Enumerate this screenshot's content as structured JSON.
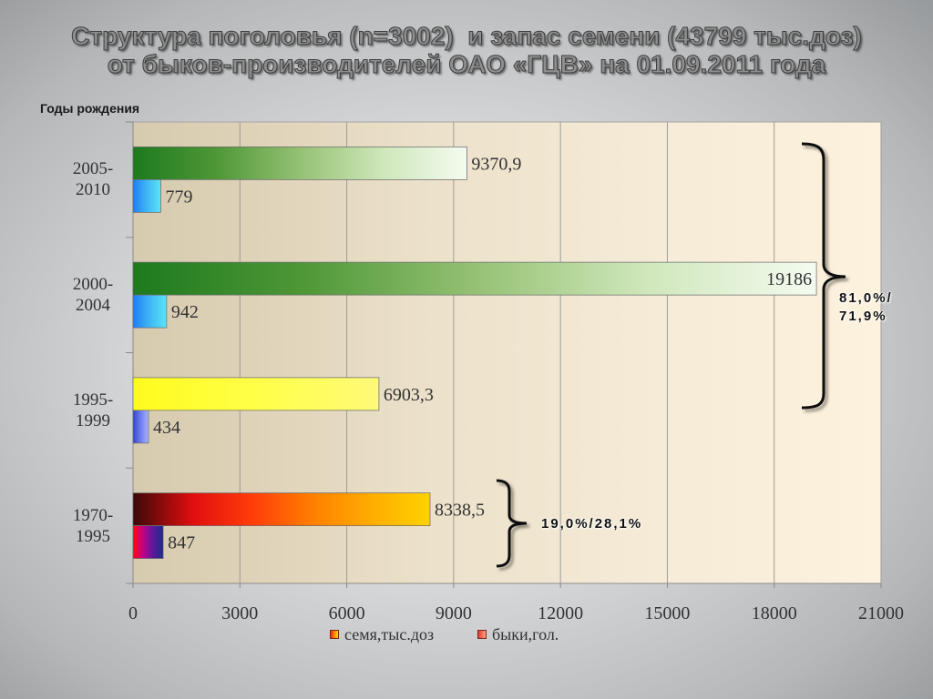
{
  "chart_data": {
    "type": "bar",
    "orientation": "horizontal",
    "title": "Структура поголовья (n=3002)  и запас семени (43799 тыс.доз)\nот быков-производителей ОАО «ГЦВ» на 01.09.2011 года",
    "ylabel": "Годы рождения",
    "categories": [
      "2005-2010",
      "2000-2004",
      "1995-1999",
      "1970-1995"
    ],
    "series": [
      {
        "name": "семя,тыс.доз",
        "values": [
          9370.9,
          19186,
          6903.3,
          8338.5
        ],
        "data_labels": [
          "9370,9",
          "19186",
          "6903,3",
          "8338,5"
        ],
        "colors": [
          [
            "#1d7a1d",
            "#4f9737",
            "#95c174",
            "#cfe7bb",
            "#f4fbf0"
          ],
          [
            "#1d7a1d",
            "#4f9737",
            "#95c174",
            "#cfe7bb",
            "#f4fbf0"
          ],
          [
            "#fffb1e",
            "#ffff48",
            "#fffa78"
          ],
          [
            "#3b0808",
            "#e00e0e",
            "#ff3c0a",
            "#ff7e00",
            "#ffac00",
            "#ffd200"
          ]
        ],
        "legend_color": [
          "#ff1e10",
          "#ff8a00",
          "#ffd400"
        ]
      },
      {
        "name": "быки,гол.",
        "values": [
          779,
          942,
          434,
          847
        ],
        "data_labels": [
          "779",
          "942",
          "434",
          "847"
        ],
        "colors": [
          [
            "#1e7df2",
            "#3fb6f5",
            "#5ce4f6"
          ],
          [
            "#1e7df2",
            "#3fb6f5",
            "#5ce4f6"
          ],
          [
            "#3046c8",
            "#6f7ff0",
            "#a9b4ff"
          ],
          [
            "#ff0a0a",
            "#c2008a",
            "#5a1a9a",
            "#1e2a8a"
          ]
        ],
        "legend_color": [
          "#e23a26",
          "#ff9f88"
        ]
      }
    ],
    "xlim": [
      0,
      21000
    ],
    "xticks": [
      0,
      3000,
      6000,
      9000,
      12000,
      15000,
      18000,
      21000
    ],
    "grid": true,
    "legend_position": "bottom",
    "annotations": [
      {
        "text": "81,0%/\n71,9%",
        "category_indices": [
          0,
          1,
          2
        ]
      },
      {
        "text": "19,0%/28,1%",
        "category_indices": [
          3
        ]
      }
    ]
  }
}
